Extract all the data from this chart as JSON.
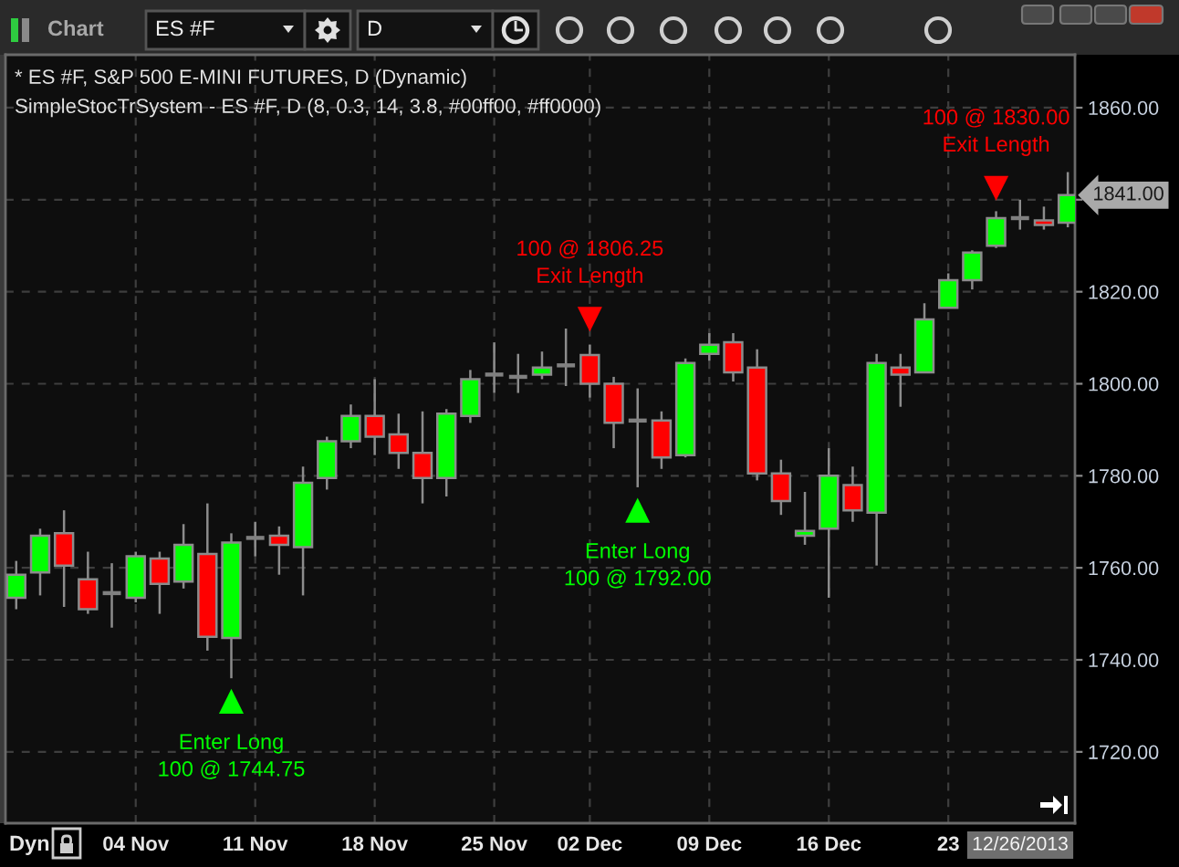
{
  "chart_data": {
    "type": "candlestick",
    "title": "* ES #F, S&P 500 E-MINI FUTURES, D (Dynamic)",
    "subtitle": "SimpleStocTrSystem - ES #F, D (8, 0.3, 14, 3.8, #00ff00, #ff0000)",
    "categories": [
      null,
      null,
      null,
      null,
      null,
      "04 Nov",
      null,
      null,
      null,
      null,
      "11 Nov",
      null,
      null,
      null,
      null,
      "18 Nov",
      null,
      null,
      null,
      null,
      "25 Nov",
      null,
      null,
      null,
      "02 Dec",
      null,
      null,
      null,
      null,
      "09 Dec",
      null,
      null,
      null,
      null,
      "16 Dec",
      null,
      null,
      null,
      null,
      "23",
      null,
      null,
      null,
      null,
      null
    ],
    "ohlc": [
      [
        1753.5,
        1761.5,
        1751,
        1758.5
      ],
      [
        1759,
        1768.5,
        1754,
        1767
      ],
      [
        1767.5,
        1772.5,
        1751.5,
        1760.5
      ],
      [
        1757.5,
        1763.5,
        1750,
        1751
      ],
      [
        1754.5,
        1761,
        1747,
        1754.5
      ],
      [
        1753.5,
        1763.5,
        1752.5,
        1762.5
      ],
      [
        1762,
        1763.5,
        1750,
        1756.5
      ],
      [
        1757,
        1769.5,
        1755.5,
        1765
      ],
      [
        1763,
        1774,
        1742,
        1745
      ],
      [
        1744.75,
        1767.5,
        1736,
        1765.5
      ],
      [
        1766.5,
        1770,
        1762.5,
        1766.5
      ],
      [
        1767,
        1769,
        1758.5,
        1765
      ],
      [
        1764.5,
        1782,
        1754,
        1778.5
      ],
      [
        1779.5,
        1788.5,
        1777,
        1787.5
      ],
      [
        1787.5,
        1795.5,
        1786,
        1793
      ],
      [
        1793,
        1801,
        1784.5,
        1788.5
      ],
      [
        1789,
        1793.5,
        1781.5,
        1785
      ],
      [
        1785,
        1794,
        1774,
        1779.5
      ],
      [
        1779.5,
        1794.5,
        1775.5,
        1793.5
      ],
      [
        1793,
        1803,
        1791.5,
        1801
      ],
      [
        1802,
        1809,
        1798,
        1802
      ],
      [
        1801.5,
        1806.5,
        1798,
        1801.5
      ],
      [
        1802,
        1807,
        1801,
        1803.5
      ],
      [
        1804,
        1812,
        1799.5,
        1804
      ],
      [
        1806.25,
        1808.5,
        1797,
        1800
      ],
      [
        1800,
        1801.5,
        1786,
        1791.5
      ],
      [
        1792,
        1799,
        1777.5,
        1792
      ],
      [
        1792,
        1794,
        1781.5,
        1784
      ],
      [
        1784.5,
        1805.5,
        1784,
        1804.5
      ],
      [
        1806.5,
        1811,
        1805,
        1808.5
      ],
      [
        1809,
        1811,
        1800.5,
        1802.5
      ],
      [
        1803.5,
        1807.5,
        1779,
        1780.5
      ],
      [
        1780.5,
        1783.5,
        1771.5,
        1774.5
      ],
      [
        1767,
        1776.5,
        1765,
        1768
      ],
      [
        1768.5,
        1786,
        1753.5,
        1780
      ],
      [
        1778,
        1782,
        1770,
        1772.5
      ],
      [
        1772,
        1806.5,
        1760.5,
        1804.5
      ],
      [
        1803.5,
        1806.5,
        1795,
        1802
      ],
      [
        1802.5,
        1817.5,
        1802.5,
        1814
      ],
      [
        1816.5,
        1824,
        1816.5,
        1822.5
      ],
      [
        1822.5,
        1829,
        1820.5,
        1828.5
      ],
      [
        1830,
        1837.5,
        1829.5,
        1836
      ],
      [
        1836,
        1840,
        1833.5,
        1836
      ],
      [
        1835.5,
        1838.5,
        1833.5,
        1834.5
      ],
      [
        1835,
        1846,
        1834,
        1841
      ]
    ],
    "colors": [
      "#00ff00",
      "#00ff00",
      "#ff0000",
      "#ff0000",
      "#808080",
      "#00ff00",
      "#ff0000",
      "#00ff00",
      "#ff0000",
      "#00ff00",
      "#808080",
      "#ff0000",
      "#00ff00",
      "#00ff00",
      "#00ff00",
      "#ff0000",
      "#ff0000",
      "#ff0000",
      "#00ff00",
      "#00ff00",
      "#808080",
      "#808080",
      "#00ff00",
      "#808080",
      "#ff0000",
      "#ff0000",
      "#808080",
      "#ff0000",
      "#00ff00",
      "#00ff00",
      "#ff0000",
      "#ff0000",
      "#ff0000",
      "#00ff00",
      "#00ff00",
      "#ff0000",
      "#00ff00",
      "#ff0000",
      "#00ff00",
      "#00ff00",
      "#00ff00",
      "#00ff00",
      "#808080",
      "#ff0000",
      "#00ff00"
    ],
    "series": [
      {
        "type": "scatter",
        "color": "#00ff00",
        "marker": "triangle",
        "values": [
          null,
          null,
          null,
          null,
          null,
          null,
          null,
          null,
          null,
          1731,
          null,
          null,
          null,
          null,
          null,
          null,
          null,
          null,
          null,
          null,
          null,
          null,
          null,
          null,
          null,
          null,
          1772.5,
          null,
          null,
          null,
          null,
          null,
          null,
          null,
          null,
          null,
          null,
          null,
          null,
          null,
          null,
          null,
          null,
          null,
          null
        ],
        "value_labels": [
          null,
          null,
          null,
          null,
          null,
          null,
          null,
          null,
          null,
          "Enter Long\n100 @ 1744.75",
          null,
          null,
          null,
          null,
          null,
          null,
          null,
          null,
          null,
          null,
          null,
          null,
          null,
          null,
          null,
          null,
          "Enter Long\n100 @ 1792.00",
          null,
          null,
          null,
          null,
          null,
          null,
          null,
          null,
          null,
          null,
          null,
          null,
          null,
          null,
          null,
          null,
          null,
          null
        ]
      },
      {
        "type": "scatter",
        "color": "#ff0000",
        "marker": "triangle",
        "values": [
          null,
          null,
          null,
          null,
          null,
          null,
          null,
          null,
          null,
          null,
          null,
          null,
          null,
          null,
          null,
          null,
          null,
          null,
          null,
          null,
          null,
          null,
          null,
          null,
          1814,
          null,
          null,
          null,
          null,
          null,
          null,
          null,
          null,
          null,
          null,
          null,
          null,
          null,
          null,
          null,
          null,
          1842.5,
          null,
          null,
          null
        ],
        "value_labels": [
          null,
          null,
          null,
          null,
          null,
          null,
          null,
          null,
          null,
          null,
          null,
          null,
          null,
          null,
          null,
          null,
          null,
          null,
          null,
          null,
          null,
          null,
          null,
          null,
          "100 @ 1806.25\nExit Length",
          null,
          null,
          null,
          null,
          null,
          null,
          null,
          null,
          null,
          null,
          null,
          null,
          null,
          null,
          null,
          null,
          "100 @ 1830.00\nExit Length",
          null,
          null,
          null
        ]
      }
    ],
    "ylim": [
      1704.5,
      1871.5
    ],
    "yticks": [
      {
        "value": 1720,
        "label": "1720.00"
      },
      {
        "value": 1740,
        "label": "1740.00"
      },
      {
        "value": 1760,
        "label": "1760.00"
      },
      {
        "value": 1780,
        "label": "1780.00"
      },
      {
        "value": 1800,
        "label": "1800.00"
      },
      {
        "value": 1820,
        "label": "1820.00"
      },
      {
        "value": 1840,
        "label": null
      },
      {
        "value": 1860,
        "label": "1860.00"
      }
    ],
    "grid": true,
    "annotations": [
      "Chart",
      "ES #F",
      "D",
      "Dyn",
      "12/26/2013",
      "1841.00"
    ]
  }
}
